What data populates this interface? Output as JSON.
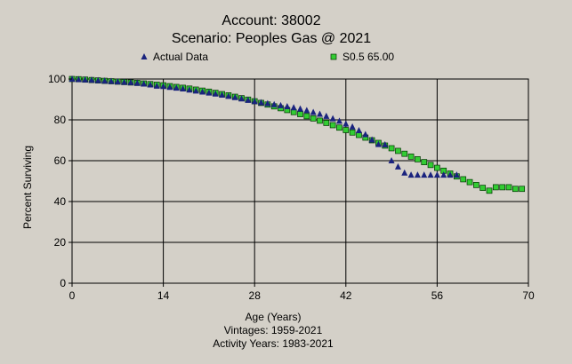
{
  "chart_data": {
    "type": "scatter",
    "title": "Account: 38002",
    "subtitle": "Scenario: Peoples Gas @ 2021",
    "xlabel": "Age (Years)",
    "ylabel": "Percent Surviving",
    "xlim": [
      0,
      70
    ],
    "ylim": [
      0,
      100
    ],
    "xticks": [
      0,
      14,
      28,
      42,
      56,
      70
    ],
    "yticks": [
      0,
      20,
      40,
      60,
      80,
      100
    ],
    "xtick_labels": [
      "0",
      "14",
      "28",
      "42",
      "56",
      "70"
    ],
    "ytick_labels": [
      "0",
      "20",
      "40",
      "60",
      "80",
      "100"
    ],
    "grid": true,
    "legend": "top",
    "background_color": "#d4d0c8",
    "plot_background_color": "#d4d0c8",
    "series": [
      {
        "name": "Actual Data",
        "marker": "triangle",
        "color": "#1a237e",
        "points": [
          [
            0,
            100
          ],
          [
            1,
            99.8
          ],
          [
            2,
            99.6
          ],
          [
            3,
            99.5
          ],
          [
            4,
            99.3
          ],
          [
            5,
            99.1
          ],
          [
            6,
            98.9
          ],
          [
            7,
            98.7
          ],
          [
            8,
            98.5
          ],
          [
            9,
            98.3
          ],
          [
            10,
            98.0
          ],
          [
            11,
            97.6
          ],
          [
            12,
            97.2
          ],
          [
            13,
            96.6
          ],
          [
            14,
            96.4
          ],
          [
            15,
            96.0
          ],
          [
            16,
            95.6
          ],
          [
            17,
            95.2
          ],
          [
            18,
            94.7
          ],
          [
            19,
            94.2
          ],
          [
            20,
            93.7
          ],
          [
            21,
            93.2
          ],
          [
            22,
            92.7
          ],
          [
            23,
            92.2
          ],
          [
            24,
            91.6
          ],
          [
            25,
            91.0
          ],
          [
            26,
            90.3
          ],
          [
            27,
            89.6
          ],
          [
            28,
            89.0
          ],
          [
            29,
            88.5
          ],
          [
            30,
            88.0
          ],
          [
            31,
            87.5
          ],
          [
            32,
            87.0
          ],
          [
            33,
            86.5
          ],
          [
            34,
            86.0
          ],
          [
            35,
            85.4
          ],
          [
            36,
            84.6
          ],
          [
            37,
            83.7
          ],
          [
            38,
            82.8
          ],
          [
            39,
            81.8
          ],
          [
            40,
            80.6
          ],
          [
            41,
            79.4
          ],
          [
            42,
            78.0
          ],
          [
            43,
            76.6
          ],
          [
            44,
            74.8
          ],
          [
            45,
            72.8
          ],
          [
            46,
            70.2
          ],
          [
            47,
            68.0
          ],
          [
            48,
            67.8
          ],
          [
            49,
            60.0
          ],
          [
            50,
            57.0
          ],
          [
            51,
            54.0
          ],
          [
            52,
            53.0
          ],
          [
            53,
            53.0
          ],
          [
            54,
            53.0
          ],
          [
            55,
            53.0
          ],
          [
            56,
            53.0
          ],
          [
            57,
            53.0
          ],
          [
            58,
            53.0
          ],
          [
            59,
            53.0
          ]
        ]
      },
      {
        "name": "S0.5 65.00",
        "marker": "square",
        "color": "#33cc33",
        "points": [
          [
            0,
            100
          ],
          [
            1,
            99.9
          ],
          [
            2,
            99.7
          ],
          [
            3,
            99.5
          ],
          [
            4,
            99.3
          ],
          [
            5,
            99.1
          ],
          [
            6,
            98.9
          ],
          [
            7,
            98.7
          ],
          [
            8,
            98.5
          ],
          [
            9,
            98.3
          ],
          [
            10,
            98.1
          ],
          [
            11,
            97.8
          ],
          [
            12,
            97.5
          ],
          [
            13,
            97.2
          ],
          [
            14,
            96.9
          ],
          [
            15,
            96.5
          ],
          [
            16,
            96.1
          ],
          [
            17,
            95.7
          ],
          [
            18,
            95.3
          ],
          [
            19,
            94.8
          ],
          [
            20,
            94.3
          ],
          [
            21,
            93.8
          ],
          [
            22,
            93.2
          ],
          [
            23,
            92.6
          ],
          [
            24,
            92.0
          ],
          [
            25,
            91.3
          ],
          [
            26,
            90.6
          ],
          [
            27,
            89.9
          ],
          [
            28,
            89.1
          ],
          [
            29,
            88.3
          ],
          [
            30,
            87.5
          ],
          [
            31,
            86.6
          ],
          [
            32,
            85.7
          ],
          [
            33,
            84.8
          ],
          [
            34,
            83.8
          ],
          [
            35,
            82.8
          ],
          [
            36,
            81.8
          ],
          [
            37,
            80.7
          ],
          [
            38,
            79.6
          ],
          [
            39,
            78.5
          ],
          [
            40,
            77.4
          ],
          [
            41,
            76.2
          ],
          [
            42,
            75.0
          ],
          [
            43,
            73.8
          ],
          [
            44,
            72.6
          ],
          [
            45,
            71.3
          ],
          [
            46,
            70.0
          ],
          [
            47,
            68.7
          ],
          [
            48,
            67.4
          ],
          [
            49,
            66.1
          ],
          [
            50,
            64.8
          ],
          [
            51,
            63.4
          ],
          [
            52,
            62.0
          ],
          [
            53,
            60.7
          ],
          [
            54,
            59.3
          ],
          [
            55,
            57.9
          ],
          [
            56,
            56.5
          ],
          [
            57,
            55.1
          ],
          [
            58,
            53.7
          ],
          [
            59,
            52.3
          ],
          [
            60,
            50.9
          ],
          [
            61,
            49.5
          ],
          [
            62,
            48.1
          ],
          [
            63,
            46.7
          ],
          [
            64,
            45.3
          ],
          [
            65,
            47.0
          ],
          [
            66,
            47.0
          ],
          [
            67,
            47.0
          ],
          [
            68,
            46.2
          ],
          [
            69,
            46.2
          ]
        ]
      }
    ]
  },
  "footer": {
    "vintages": "Vintages: 1959-2021",
    "activity_years": "Activity Years: 1983-2021"
  }
}
